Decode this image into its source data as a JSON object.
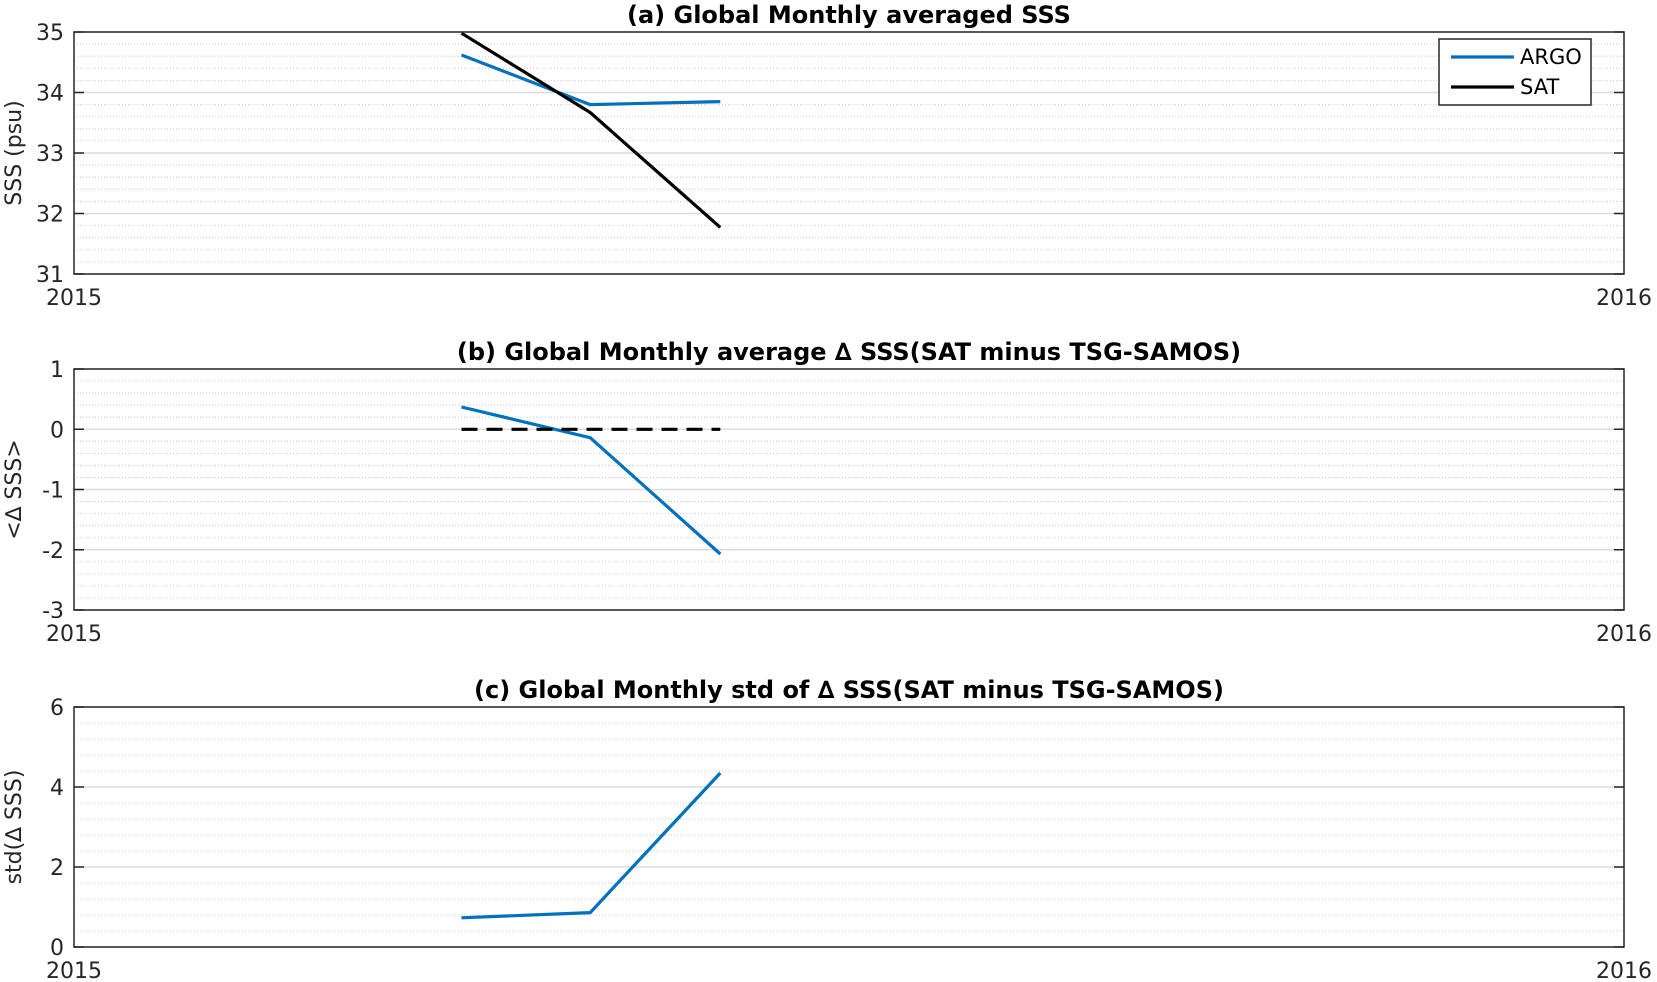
{
  "colors": {
    "argo": "#0072BD",
    "sat": "#000000",
    "zero_line": "#000000",
    "grid_major": "#dcdcdc",
    "grid_minor": "#c8c8c8",
    "axes": "#262626"
  },
  "chart_data": [
    {
      "type": "line",
      "title": "(a) Global Monthly averaged SSS",
      "xlabel": "",
      "ylabel": "SSS (psu)",
      "xlim": [
        2015,
        2016
      ],
      "ylim": [
        31,
        35
      ],
      "xticks": [
        "2015",
        "2016"
      ],
      "yticks": [
        "31",
        "32",
        "33",
        "34",
        "35"
      ],
      "grid": "on (major and minor)",
      "legend_position": "top-right",
      "series": [
        {
          "name": "ARGO",
          "color": "#0072BD",
          "style": "solid",
          "x": [
            2015.25,
            2015.333,
            2015.417
          ],
          "y": [
            34.62,
            33.8,
            33.85
          ]
        },
        {
          "name": "SAT",
          "color": "#000000",
          "style": "solid",
          "x": [
            2015.25,
            2015.333,
            2015.417
          ],
          "y": [
            34.98,
            33.67,
            31.77
          ]
        }
      ]
    },
    {
      "type": "line",
      "title": "(b) Global Monthly average ∆ SSS(SAT minus TSG-SAMOS)",
      "xlabel": "",
      "ylabel": "<∆ SSS>",
      "xlim": [
        2015,
        2016
      ],
      "ylim": [
        -3,
        1
      ],
      "xticks": [
        "2015",
        "2016"
      ],
      "yticks": [
        "-3",
        "-2",
        "-1",
        "0",
        "1"
      ],
      "grid": "on (major and minor)",
      "series": [
        {
          "color": "#0072BD",
          "style": "solid",
          "x": [
            2015.25,
            2015.333,
            2015.417
          ],
          "y": [
            0.37,
            -0.14,
            -2.07
          ]
        },
        {
          "color": "#000000",
          "style": "dashed",
          "x": [
            2015.25,
            2015.417
          ],
          "y": [
            0,
            0
          ]
        }
      ]
    },
    {
      "type": "line",
      "title": "(c) Global Monthly std of ∆ SSS(SAT minus TSG-SAMOS)",
      "xlabel": "",
      "ylabel": "std(∆ SSS)",
      "xlim": [
        2015,
        2016
      ],
      "ylim": [
        0,
        6
      ],
      "xticks": [
        "2015",
        "2016"
      ],
      "yticks": [
        "0",
        "2",
        "4",
        "6"
      ],
      "grid": "on (major and minor)",
      "series": [
        {
          "color": "#0072BD",
          "style": "solid",
          "x": [
            2015.25,
            2015.333,
            2015.417
          ],
          "y": [
            0.73,
            0.86,
            4.35
          ]
        }
      ]
    }
  ]
}
